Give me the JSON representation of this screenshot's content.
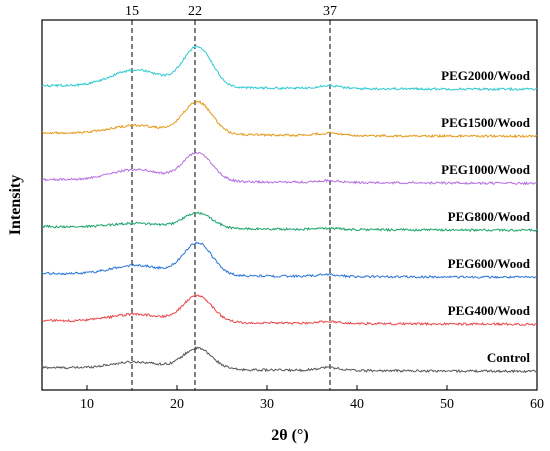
{
  "chart_data": {
    "type": "line",
    "xlabel": "2θ (°)",
    "ylabel": "Intensity",
    "xlim": [
      5,
      60
    ],
    "x_ticks": [
      10,
      20,
      30,
      40,
      50,
      60
    ],
    "y_ticks_shown": false,
    "grid": false,
    "legend": "inline labels at right end of each curve",
    "reference_lines": [
      {
        "x": 15,
        "label": "15"
      },
      {
        "x": 22,
        "label": "22"
      },
      {
        "x": 37,
        "label": "37"
      }
    ],
    "series": [
      {
        "name": "Control",
        "color": "#555555",
        "offset": 0.0,
        "peak22": 0.55,
        "peak15": 0.18,
        "peak37": 0.08
      },
      {
        "name": "PEG400/Wood",
        "color": "#e8474a",
        "offset": 1.0,
        "peak22": 0.7,
        "peak15": 0.2,
        "peak37": 0.05
      },
      {
        "name": "PEG600/Wood",
        "color": "#2a74d8",
        "offset": 2.0,
        "peak22": 0.85,
        "peak15": 0.25,
        "peak37": 0.05
      },
      {
        "name": "PEG800/Wood",
        "color": "#19a46a",
        "offset": 3.0,
        "peak22": 0.4,
        "peak15": 0.12,
        "peak37": 0.03
      },
      {
        "name": "PEG1000/Wood",
        "color": "#b46fe0",
        "offset": 4.0,
        "peak22": 0.75,
        "peak15": 0.3,
        "peak37": 0.05
      },
      {
        "name": "PEG1500/Wood",
        "color": "#e49a1a",
        "offset": 5.0,
        "peak22": 0.85,
        "peak15": 0.22,
        "peak37": 0.06
      },
      {
        "name": "PEG2000/Wood",
        "color": "#2ec9d2",
        "offset": 6.0,
        "peak22": 1.05,
        "peak15": 0.45,
        "peak37": 0.08
      }
    ]
  }
}
